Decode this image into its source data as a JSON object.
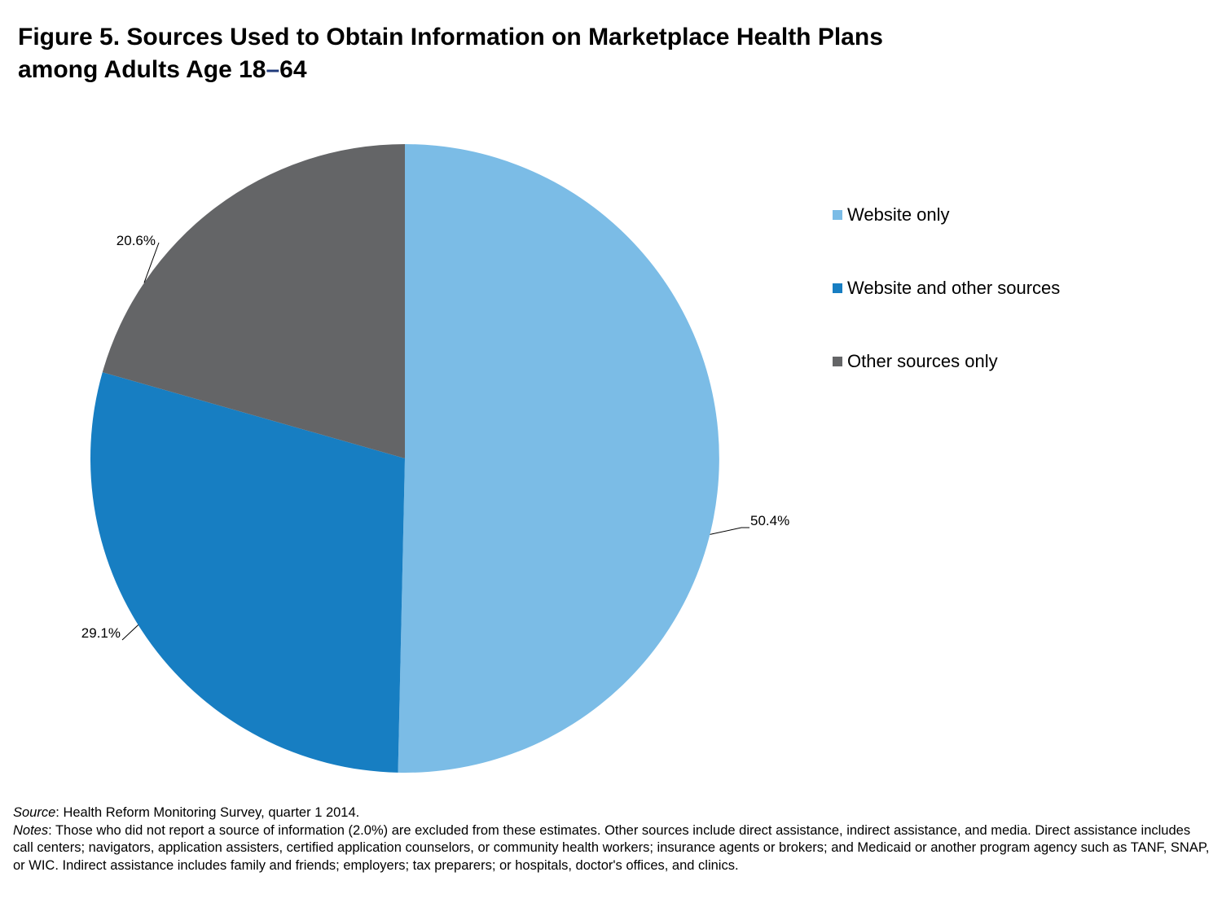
{
  "title": {
    "line1": "Figure 5. Sources Used to Obtain Information on Marketplace Health Plans",
    "line2_prefix": "among Adults Age 18",
    "line2_dash": "–",
    "line2_suffix": "64"
  },
  "chart_data": {
    "type": "pie",
    "title": "Figure 5. Sources Used to Obtain Information on Marketplace Health Plans among Adults Age 18–64",
    "legend_position": "right",
    "slices": [
      {
        "name": "Website only",
        "value": 50.4,
        "label": "50.4%",
        "color": "#7bbce6"
      },
      {
        "name": "Website and other sources",
        "value": 29.1,
        "label": "29.1%",
        "color": "#177ec2"
      },
      {
        "name": "Other sources only",
        "value": 20.6,
        "label": "20.6%",
        "color": "#646567"
      }
    ]
  },
  "footnotes": {
    "source_label": "Source",
    "source_text": ": Health Reform Monitoring Survey, quarter 1 2014.",
    "notes_label": "Notes",
    "notes_text": ": Those who did not report a source  of information (2.0%) are excluded from these estimates. Other sources include direct assistance, indirect assistance, and media. Direct assistance includes call centers; navigators, application assisters, certified application counselors, or community health workers; insurance agents or brokers; and Medicaid or another program agency such as TANF, SNAP, or WIC. Indirect assistance includes family and friends; employers; tax preparers; or hospitals, doctor's offices, and clinics."
  }
}
